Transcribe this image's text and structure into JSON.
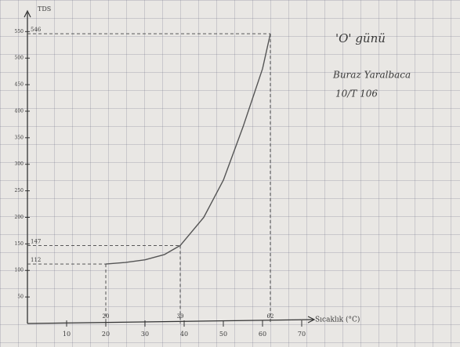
{
  "chart_data": {
    "type": "line",
    "y_label": "TDS",
    "x_label": "Sıcaklık (°C)",
    "annotations": [
      "'O' günü",
      "Buraz Yaralbaca",
      "10/T 106"
    ],
    "x": [
      20,
      25,
      30,
      35,
      39,
      45,
      50,
      55,
      60,
      62
    ],
    "y": [
      112,
      115,
      120,
      130,
      147,
      200,
      270,
      370,
      480,
      546
    ],
    "color": "#555555",
    "markers": [
      {
        "x": 20,
        "y": 112
      },
      {
        "x": 39,
        "y": 147
      },
      {
        "x": 62,
        "y": 546
      }
    ],
    "xlim": [
      0,
      74
    ],
    "xticks": [
      10,
      20,
      30,
      40,
      50,
      60,
      70
    ],
    "ylim": [
      0,
      580
    ],
    "yticks": [
      50,
      100,
      150,
      200,
      250,
      300,
      350,
      400,
      450,
      500,
      550
    ]
  }
}
